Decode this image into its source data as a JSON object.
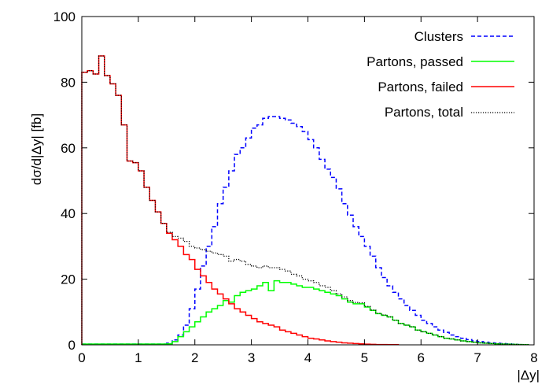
{
  "chart_data": {
    "type": "line",
    "style": "step-histogram",
    "title": "",
    "xlabel": "|Δy|",
    "ylabel": "dσ/d|Δy| [fb]",
    "xlim": [
      0,
      8
    ],
    "ylim": [
      0,
      100
    ],
    "xticks": [
      0,
      1,
      2,
      3,
      4,
      5,
      6,
      7,
      8
    ],
    "yticks": [
      0,
      20,
      40,
      60,
      80,
      100
    ],
    "grid": false,
    "legend_position": "top-right",
    "bin_width": 0.1,
    "series": [
      {
        "name": "Clusters",
        "color": "#0000ff",
        "dash": "dashed",
        "x": [
          1.5,
          1.6,
          1.7,
          1.8,
          1.9,
          2.0,
          2.1,
          2.2,
          2.3,
          2.4,
          2.5,
          2.6,
          2.7,
          2.8,
          2.9,
          3.0,
          3.1,
          3.2,
          3.3,
          3.4,
          3.5,
          3.6,
          3.7,
          3.8,
          3.9,
          4.0,
          4.1,
          4.2,
          4.3,
          4.4,
          4.5,
          4.6,
          4.7,
          4.8,
          4.9,
          5.0,
          5.1,
          5.2,
          5.3,
          5.4,
          5.5,
          5.6,
          5.7,
          5.8,
          5.9,
          6.0,
          6.1,
          6.2,
          6.3,
          6.4,
          6.5,
          6.6,
          6.7,
          6.8,
          6.9,
          7.0,
          7.1,
          7.2,
          7.3,
          7.4,
          7.5,
          7.6,
          7.7,
          7.8
        ],
        "values": [
          0.5,
          1.5,
          3,
          6,
          11,
          17,
          24,
          30,
          36,
          43,
          48,
          53,
          58,
          60,
          63,
          66,
          67,
          69,
          69.5,
          69.5,
          69,
          68.5,
          67.5,
          66.5,
          65,
          62.5,
          60,
          56.5,
          53.5,
          51,
          47.5,
          43,
          39.5,
          36,
          33,
          30,
          27,
          23.5,
          20.5,
          18,
          16,
          14,
          12,
          10.5,
          9,
          7.5,
          6.5,
          5.5,
          4.5,
          3.8,
          3,
          2.5,
          2,
          1.6,
          1.2,
          1.0,
          0.8,
          0.6,
          0.5,
          0.4,
          0.3,
          0.2,
          0.1,
          0.05
        ]
      },
      {
        "name": "Partons, passed",
        "color": "#00ff00",
        "dash": "solid",
        "x": [
          1.5,
          1.6,
          1.7,
          1.8,
          1.9,
          2.0,
          2.1,
          2.2,
          2.3,
          2.4,
          2.5,
          2.6,
          2.7,
          2.8,
          2.9,
          3.0,
          3.1,
          3.2,
          3.3,
          3.4,
          3.5,
          3.6,
          3.7,
          3.8,
          3.9,
          4.0,
          4.1,
          4.2,
          4.3,
          4.4,
          4.5,
          4.6,
          4.7,
          4.8,
          4.9,
          5.0,
          5.1,
          5.2,
          5.3,
          5.4,
          5.5,
          5.6,
          5.7,
          5.8,
          5.9,
          6.0,
          6.1,
          6.2,
          6.3,
          6.4,
          6.5,
          6.6,
          6.7,
          6.8,
          6.9,
          7.0,
          7.1,
          7.2,
          7.3,
          7.4,
          7.5,
          7.6,
          7.7,
          7.8
        ],
        "values": [
          0.3,
          1,
          2.5,
          4,
          5.5,
          7,
          8.5,
          10,
          11,
          12,
          13.5,
          13,
          15,
          16,
          16.5,
          17,
          18,
          19,
          16.5,
          19.5,
          19,
          19,
          18.5,
          18,
          17.5,
          17.5,
          17,
          16.5,
          16,
          15.5,
          15,
          14,
          13,
          12.5,
          12.5,
          11.5,
          10.5,
          9.5,
          9,
          8.5,
          7.5,
          6.5,
          6,
          5.5,
          4.5,
          4,
          3.5,
          3,
          2.5,
          2,
          1.8,
          1.5,
          1.2,
          1,
          0.8,
          0.6,
          0.5,
          0.4,
          0.3,
          0.25,
          0.2,
          0.15,
          0.1,
          0.05
        ]
      },
      {
        "name": "Partons, failed",
        "color": "#ff0000",
        "dash": "solid",
        "x": [
          0.0,
          0.1,
          0.2,
          0.3,
          0.4,
          0.5,
          0.6,
          0.7,
          0.8,
          0.9,
          1.0,
          1.1,
          1.2,
          1.3,
          1.4,
          1.5,
          1.6,
          1.7,
          1.8,
          1.9,
          2.0,
          2.1,
          2.2,
          2.3,
          2.4,
          2.5,
          2.6,
          2.7,
          2.8,
          2.9,
          3.0,
          3.1,
          3.2,
          3.3,
          3.4,
          3.5,
          3.6,
          3.7,
          3.8,
          3.9,
          4.0,
          4.1,
          4.2,
          4.3,
          4.4,
          4.5,
          4.6,
          4.7,
          4.8,
          4.9,
          5.0,
          5.1,
          5.2,
          5.3,
          5.4,
          5.5
        ],
        "values": [
          83,
          83.5,
          82.5,
          88,
          82,
          79.5,
          76,
          67,
          56,
          55.5,
          53,
          48,
          44,
          40.5,
          37,
          34,
          32,
          30,
          27.5,
          26,
          23,
          21,
          19,
          17,
          15.5,
          14,
          12.5,
          11,
          10,
          9,
          8,
          7,
          6.5,
          6,
          5.5,
          4.5,
          4,
          3.5,
          3,
          2.5,
          2,
          1.8,
          1.5,
          1.2,
          1,
          0.8,
          0.6,
          0.5,
          0.4,
          0.3,
          0.2,
          0.15,
          0.1,
          0.1,
          0.05,
          0.05
        ]
      },
      {
        "name": "Partons, total",
        "color": "#000000",
        "dash": "dotted",
        "x": [
          0.0,
          0.1,
          0.2,
          0.3,
          0.4,
          0.5,
          0.6,
          0.7,
          0.8,
          0.9,
          1.0,
          1.1,
          1.2,
          1.3,
          1.4,
          1.5,
          1.6,
          1.7,
          1.8,
          1.9,
          2.0,
          2.1,
          2.2,
          2.3,
          2.4,
          2.5,
          2.6,
          2.7,
          2.8,
          2.9,
          3.0,
          3.1,
          3.2,
          3.3,
          3.4,
          3.5,
          3.6,
          3.7,
          3.8,
          3.9,
          4.0,
          4.1,
          4.2,
          4.3,
          4.4,
          4.5,
          4.6,
          4.7,
          4.8,
          4.9,
          5.0,
          5.1,
          5.2,
          5.3,
          5.4,
          5.5,
          5.6,
          5.7,
          5.8,
          5.9,
          6.0,
          6.1,
          6.2,
          6.3,
          6.4,
          6.5,
          6.6,
          6.7,
          6.8,
          6.9,
          7.0,
          7.1,
          7.2,
          7.3,
          7.4,
          7.5,
          7.6,
          7.7,
          7.8
        ],
        "values": [
          83,
          83.5,
          82.5,
          88,
          82,
          79.5,
          76,
          67,
          56,
          55.5,
          53,
          48,
          44,
          40.5,
          37,
          34.3,
          33,
          32.5,
          31.5,
          30,
          29.5,
          29,
          28.5,
          28,
          27.5,
          27,
          25.5,
          26,
          25.5,
          24.5,
          24,
          23.5,
          24,
          23.5,
          23.5,
          23,
          22.5,
          21.5,
          21,
          20,
          19.5,
          19,
          18,
          17.5,
          16.5,
          15.5,
          14.6,
          13.5,
          12.9,
          12.8,
          11.7,
          10.6,
          9.6,
          9.1,
          8.5,
          7.5,
          6.5,
          6,
          5.5,
          4.5,
          4,
          3.5,
          3,
          2.5,
          2,
          1.8,
          1.5,
          1.2,
          1,
          0.8,
          0.6,
          0.5,
          0.4,
          0.3,
          0.25,
          0.2,
          0.15,
          0.1,
          0.05
        ]
      }
    ]
  }
}
